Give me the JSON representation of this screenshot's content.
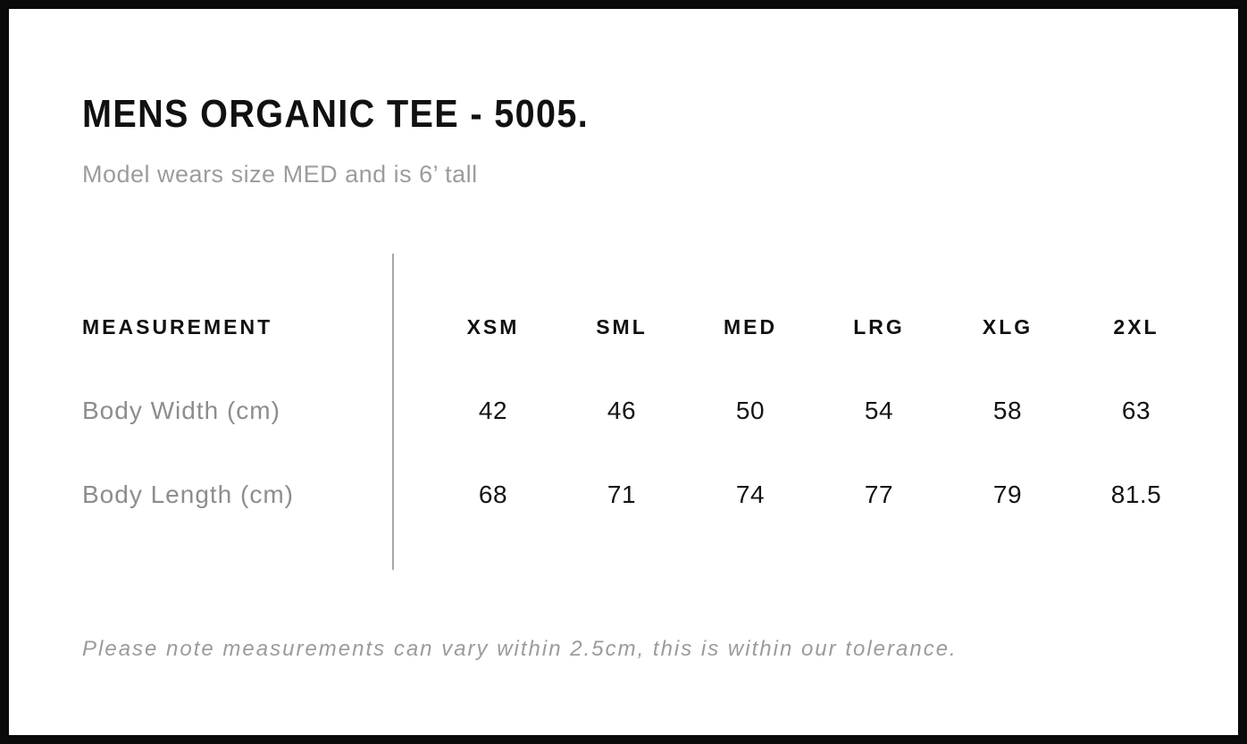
{
  "page": {
    "title": "MENS ORGANIC TEE - 5005.",
    "subtitle": "Model wears size MED and is 6’ tall",
    "footnote": "Please note measurements can vary within 2.5cm, this is within our tolerance."
  },
  "size_chart": {
    "measurement_header": "MEASUREMENT",
    "size_headers": [
      "XSM",
      "SML",
      "MED",
      "LRG",
      "XLG",
      "2XL"
    ],
    "rows": [
      {
        "label": "Body Width (cm)",
        "values": [
          "42",
          "46",
          "50",
          "54",
          "58",
          "63"
        ]
      },
      {
        "label": "Body Length (cm)",
        "values": [
          "68",
          "71",
          "74",
          "77",
          "79",
          "81.5"
        ]
      }
    ]
  },
  "colors": {
    "text_primary": "#111111",
    "text_muted": "#8d8d8d",
    "subtitle_gray": "#9c9c9c",
    "divider_gray": "#a6a6a6",
    "frame_border": "#0a0a0a"
  }
}
